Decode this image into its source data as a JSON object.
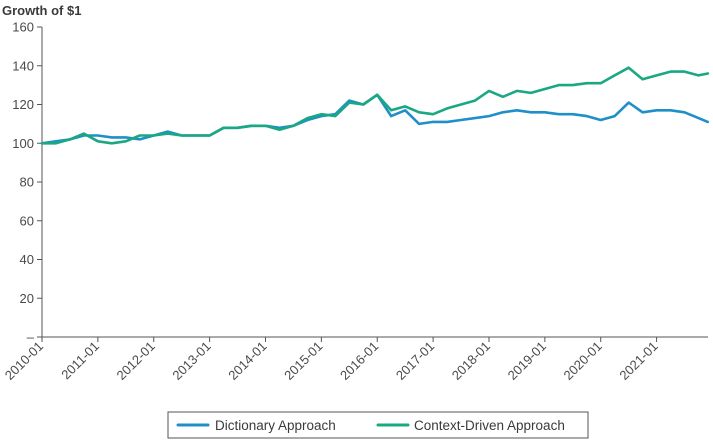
{
  "chart_data": {
    "type": "line",
    "title": "Growth of $1",
    "xlabel": "",
    "ylabel": "",
    "ylim": [
      0,
      160
    ],
    "y_ticks": [
      {
        "value": 0,
        "label": "–"
      },
      {
        "value": 20,
        "label": "20"
      },
      {
        "value": 40,
        "label": "40"
      },
      {
        "value": 60,
        "label": "60"
      },
      {
        "value": 80,
        "label": "80"
      },
      {
        "value": 100,
        "label": "100"
      },
      {
        "value": 120,
        "label": "120"
      },
      {
        "value": 140,
        "label": "140"
      },
      {
        "value": 160,
        "label": "160"
      }
    ],
    "x_tick_labels": [
      "2010-01",
      "2011-01",
      "2012-01",
      "2013-01",
      "2014-01",
      "2015-01",
      "2016-01",
      "2017-01",
      "2018-01",
      "2019-01",
      "2020-01",
      "2021-01"
    ],
    "x_start_year": 2010,
    "x_end_year": 2021.92,
    "grid": false,
    "legend_position": "bottom",
    "x": [
      "2010-01",
      "2010-04",
      "2010-07",
      "2010-10",
      "2011-01",
      "2011-04",
      "2011-07",
      "2011-10",
      "2012-01",
      "2012-04",
      "2012-07",
      "2012-10",
      "2013-01",
      "2013-04",
      "2013-07",
      "2013-10",
      "2014-01",
      "2014-04",
      "2014-07",
      "2014-10",
      "2015-01",
      "2015-04",
      "2015-07",
      "2015-10",
      "2016-01",
      "2016-04",
      "2016-07",
      "2016-10",
      "2017-01",
      "2017-04",
      "2017-07",
      "2017-10",
      "2018-01",
      "2018-04",
      "2018-07",
      "2018-10",
      "2019-01",
      "2019-04",
      "2019-07",
      "2019-10",
      "2020-01",
      "2020-04",
      "2020-07",
      "2020-10",
      "2021-01",
      "2021-04",
      "2021-07",
      "2021-10",
      "2021-12"
    ],
    "series": [
      {
        "name": "Dictionary Approach",
        "color": "#1f8fc9",
        "values": [
          100,
          101,
          102,
          104,
          104,
          103,
          103,
          102,
          104,
          106,
          104,
          104,
          104,
          108,
          108,
          109,
          109,
          108,
          109,
          112,
          114,
          115,
          122,
          120,
          125,
          114,
          117,
          110,
          111,
          111,
          112,
          113,
          114,
          116,
          117,
          116,
          116,
          115,
          115,
          114,
          112,
          114,
          121,
          116,
          117,
          117,
          116,
          113,
          111
        ]
      },
      {
        "name": "Context-Driven Approach",
        "color": "#1aa882",
        "values": [
          100,
          100,
          102,
          105,
          101,
          100,
          101,
          104,
          104,
          105,
          104,
          104,
          104,
          108,
          108,
          109,
          109,
          107,
          109,
          113,
          115,
          114,
          121,
          120,
          125,
          117,
          119,
          116,
          115,
          118,
          120,
          122,
          127,
          124,
          127,
          126,
          128,
          130,
          130,
          131,
          131,
          135,
          139,
          133,
          135,
          137,
          137,
          135,
          136
        ]
      }
    ]
  }
}
